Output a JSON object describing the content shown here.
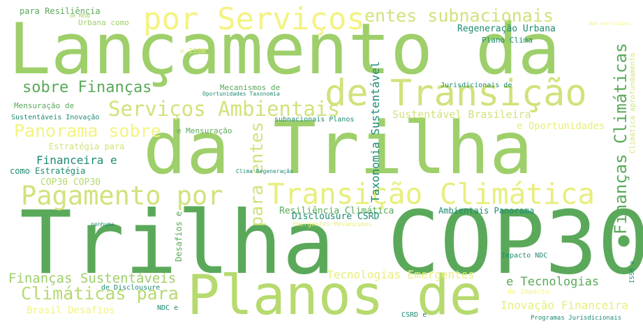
{
  "colors": {
    "background": "#ffffff",
    "palette": [
      "#9ecf6a",
      "#5aa95a",
      "#e8ee7c",
      "#d1e27b",
      "#1c8a72",
      "#b6da6e",
      "#f3f381"
    ]
  },
  "words": [
    "Lançamento da",
    "Trilha COP30",
    "da Trilha",
    "Planos de",
    "por Serviços",
    "de Transição",
    "Pagamento por",
    "Transição Climática",
    "Finanças Climáticas",
    "entes subnacionais",
    "Serviços Ambientais",
    "Panorama sobre",
    "sobre Finanças",
    "Climáticas para",
    "Finanças Sustentáveis",
    "para entes",
    "Taxonomia Sustentável",
    "Tecnologias Emergentes",
    "e Tecnologias",
    "Inovação Financeira",
    "Sustentável Brasileira",
    "e Oportunidades",
    "Regeneração Urbana",
    "Financeira e",
    "como Estratégia",
    "COP30 COP30",
    "Estratégia para",
    "Resiliência Climática",
    "Disclousure CSRD",
    "Ambientais Panorama",
    "Desafios e",
    "Brasil Desafios",
    "para Resiliência",
    "Urbana como",
    "Plano Clima",
    "Mecanismos de",
    "Jurisdicionais de",
    "Mensuração de",
    "e Mensuração",
    "subnacionais Planos",
    "Sustentáveis Inovação",
    "Oportunidades Taxonomia",
    "Climática aprofundamento",
    "Clima Regeneração",
    "Emergentes Mecanismos",
    "nenhuma",
    "Impacto NDC",
    "de Disclousure",
    "de Impacto",
    "NDC e",
    "CSRD e",
    "Programas Jurisdicionais",
    "ISSB e",
    "e ISSB",
    "de REDD",
    "Não participei"
  ]
}
